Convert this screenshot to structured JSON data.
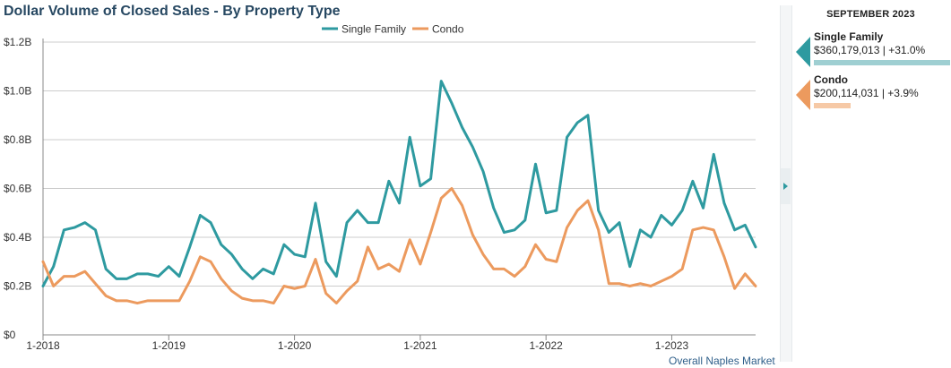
{
  "title": "Dollar Volume of Closed Sales - By Property Type",
  "source_note": "Overall Naples Market",
  "colors": {
    "single_family": "#2e9aa0",
    "condo": "#ec9a5e",
    "single_family_light": "#9fcfd2",
    "condo_light": "#f6c9a6",
    "grid": "#cccccc",
    "axis": "#555555"
  },
  "side_panel": {
    "date_label": "SEPTEMBER 2023",
    "entries": [
      {
        "name": "Single Family",
        "value": "$360,179,013 | +31.0%",
        "color": "#2e9aa0",
        "bar_color": "#9fcfd2",
        "bar_share": 1.0
      },
      {
        "name": "Condo",
        "value": "$200,114,031 | +3.9%",
        "color": "#ec9a5e",
        "bar_color": "#f6c9a6",
        "bar_share": 0.27
      }
    ]
  },
  "chart_data": {
    "type": "line",
    "title": "Dollar Volume of Closed Sales - By Property Type",
    "legend_position": "top-center",
    "grid": true,
    "ylim": [
      0,
      1.2
    ],
    "ytick_labels": [
      "$0",
      "$0.2B",
      "$0.4B",
      "$0.6B",
      "$0.8B",
      "$1.0B",
      "$1.2B"
    ],
    "yticks": [
      0,
      0.2,
      0.4,
      0.6,
      0.8,
      1.0,
      1.2
    ],
    "x_start": "2018-01",
    "x_end": "2023-09",
    "xtick_labels": [
      "1-2018",
      "1-2019",
      "1-2020",
      "1-2021",
      "1-2022",
      "1-2023"
    ],
    "xtick_months": [
      "2018-01",
      "2019-01",
      "2020-01",
      "2021-01",
      "2022-01",
      "2023-01"
    ],
    "x": [
      "2018-01",
      "2018-02",
      "2018-03",
      "2018-04",
      "2018-05",
      "2018-06",
      "2018-07",
      "2018-08",
      "2018-09",
      "2018-10",
      "2018-11",
      "2018-12",
      "2019-01",
      "2019-02",
      "2019-03",
      "2019-04",
      "2019-05",
      "2019-06",
      "2019-07",
      "2019-08",
      "2019-09",
      "2019-10",
      "2019-11",
      "2019-12",
      "2020-01",
      "2020-02",
      "2020-03",
      "2020-04",
      "2020-05",
      "2020-06",
      "2020-07",
      "2020-08",
      "2020-09",
      "2020-10",
      "2020-11",
      "2020-12",
      "2021-01",
      "2021-02",
      "2021-03",
      "2021-04",
      "2021-05",
      "2021-06",
      "2021-07",
      "2021-08",
      "2021-09",
      "2021-10",
      "2021-11",
      "2021-12",
      "2022-01",
      "2022-02",
      "2022-03",
      "2022-04",
      "2022-05",
      "2022-06",
      "2022-07",
      "2022-08",
      "2022-09",
      "2022-10",
      "2022-11",
      "2022-12",
      "2023-01",
      "2023-02",
      "2023-03",
      "2023-04",
      "2023-05",
      "2023-06",
      "2023-07",
      "2023-08",
      "2023-09"
    ],
    "series": [
      {
        "name": "Single Family",
        "color": "#2e9aa0",
        "values": [
          0.2,
          0.28,
          0.43,
          0.44,
          0.46,
          0.43,
          0.27,
          0.23,
          0.23,
          0.25,
          0.25,
          0.24,
          0.28,
          0.24,
          0.36,
          0.49,
          0.46,
          0.37,
          0.33,
          0.27,
          0.23,
          0.27,
          0.25,
          0.37,
          0.33,
          0.32,
          0.54,
          0.3,
          0.24,
          0.46,
          0.51,
          0.46,
          0.46,
          0.63,
          0.54,
          0.81,
          0.61,
          0.64,
          1.04,
          0.95,
          0.85,
          0.77,
          0.67,
          0.52,
          0.42,
          0.43,
          0.47,
          0.7,
          0.5,
          0.51,
          0.81,
          0.87,
          0.9,
          0.51,
          0.42,
          0.46,
          0.28,
          0.43,
          0.4,
          0.49,
          0.45,
          0.51,
          0.63,
          0.52,
          0.74,
          0.54,
          0.43,
          0.45,
          0.36
        ]
      },
      {
        "name": "Condo",
        "color": "#ec9a5e",
        "values": [
          0.3,
          0.2,
          0.24,
          0.24,
          0.26,
          0.21,
          0.16,
          0.14,
          0.14,
          0.13,
          0.14,
          0.14,
          0.14,
          0.14,
          0.22,
          0.32,
          0.3,
          0.23,
          0.18,
          0.15,
          0.14,
          0.14,
          0.13,
          0.2,
          0.19,
          0.2,
          0.31,
          0.17,
          0.13,
          0.18,
          0.22,
          0.36,
          0.27,
          0.29,
          0.26,
          0.39,
          0.29,
          0.42,
          0.56,
          0.6,
          0.53,
          0.41,
          0.33,
          0.27,
          0.27,
          0.24,
          0.28,
          0.37,
          0.31,
          0.3,
          0.44,
          0.51,
          0.55,
          0.43,
          0.21,
          0.21,
          0.2,
          0.21,
          0.2,
          0.22,
          0.24,
          0.27,
          0.43,
          0.44,
          0.43,
          0.32,
          0.19,
          0.25,
          0.2
        ]
      }
    ]
  }
}
